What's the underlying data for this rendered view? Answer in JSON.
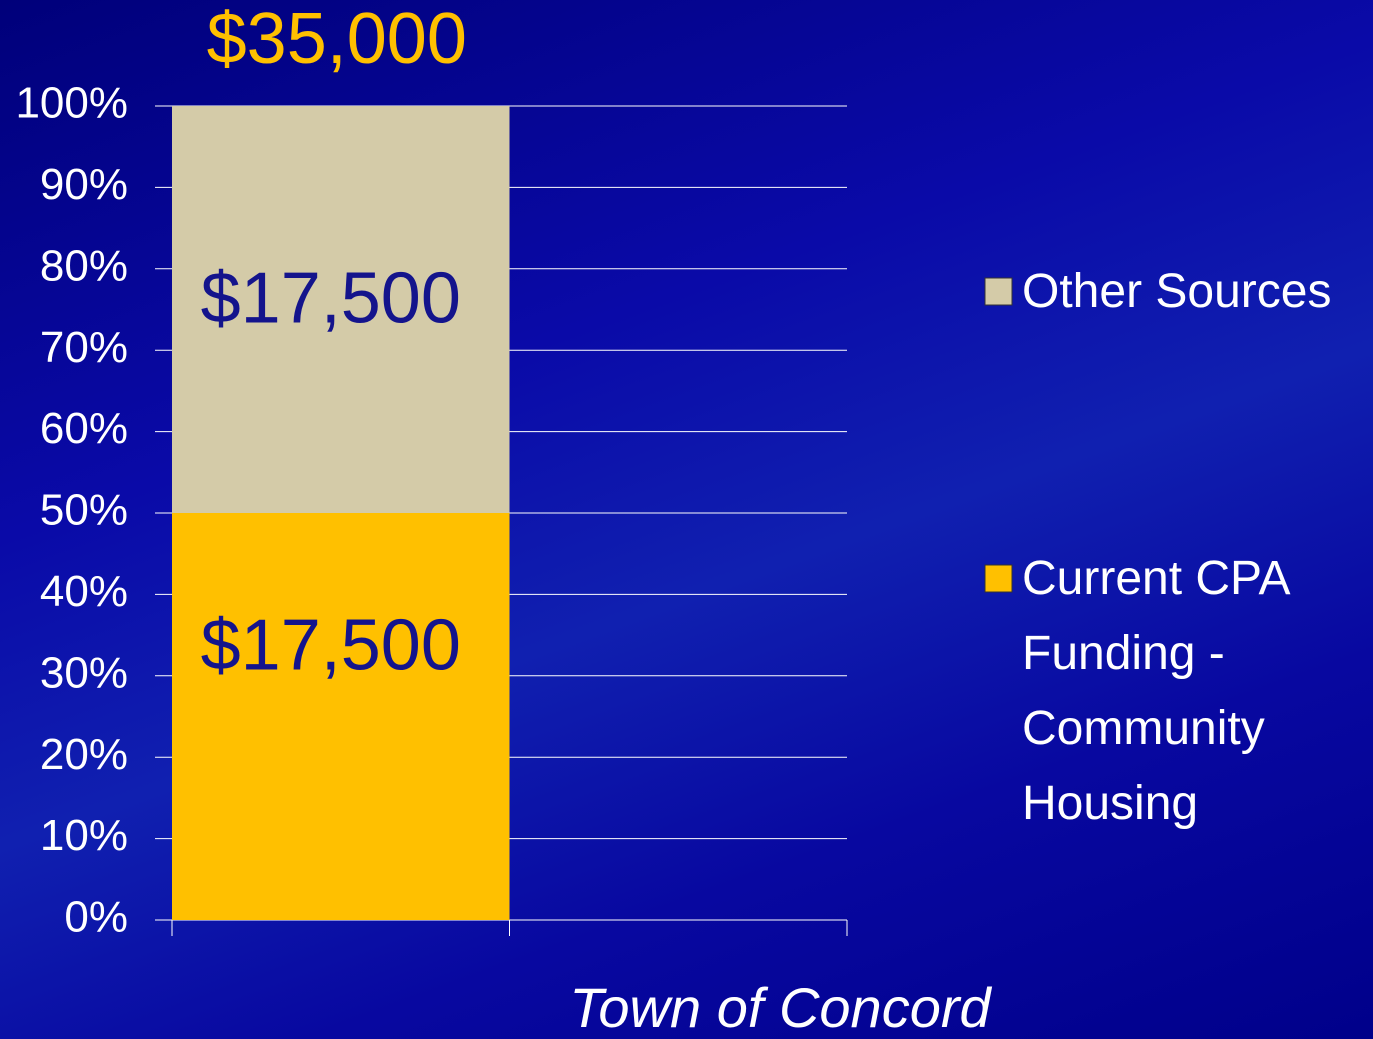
{
  "chart_data": {
    "type": "stacked_bar_percent",
    "x_label": "Town of Concord",
    "categories": [
      null,
      null
    ],
    "series": [
      {
        "name": "Current CPA Funding - Community Housing",
        "color": "#ffc000",
        "values": [
          50,
          null
        ],
        "labels": [
          "$17,500",
          null
        ]
      },
      {
        "name": "Other Sources",
        "color": "#d4cba8",
        "values": [
          50,
          null
        ],
        "labels": [
          "$17,500",
          null
        ]
      }
    ],
    "total_labels": [
      "$35,000",
      null
    ],
    "ylim": [
      0,
      100
    ],
    "yticks": [
      {
        "value": 0,
        "label": "0%"
      },
      {
        "value": 10,
        "label": "10%"
      },
      {
        "value": 20,
        "label": "20%"
      },
      {
        "value": 30,
        "label": "30%"
      },
      {
        "value": 40,
        "label": "40%"
      },
      {
        "value": 50,
        "label": "50%"
      },
      {
        "value": 60,
        "label": "60%"
      },
      {
        "value": 70,
        "label": "70%"
      },
      {
        "value": 80,
        "label": "80%"
      },
      {
        "value": 90,
        "label": "90%"
      },
      {
        "value": 100,
        "label": "100%"
      }
    ],
    "grid": true,
    "legend": "right"
  }
}
